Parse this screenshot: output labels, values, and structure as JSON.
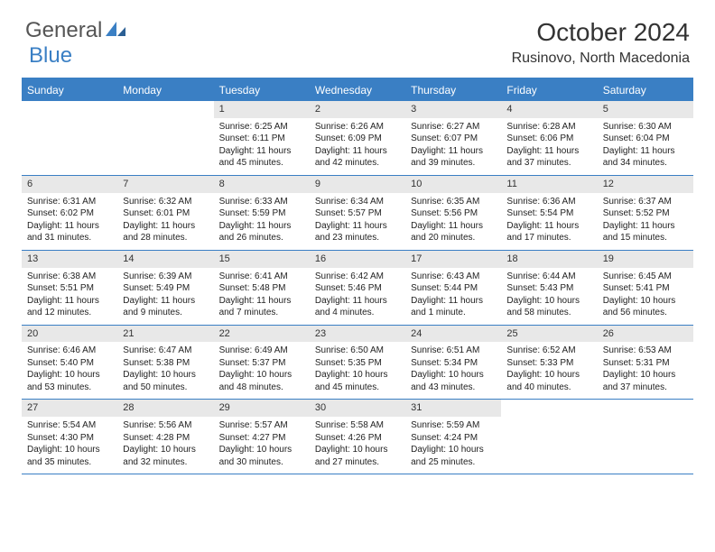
{
  "logo": {
    "g": "General",
    "b": "Blue"
  },
  "title": "October 2024",
  "location": "Rusinovo, North Macedonia",
  "colors": {
    "accent": "#3a7fc4",
    "row_border": "#3a7fc4",
    "num_bg": "#e8e8e8",
    "text": "#333333",
    "bg": "#ffffff"
  },
  "weekdays": [
    "Sunday",
    "Monday",
    "Tuesday",
    "Wednesday",
    "Thursday",
    "Friday",
    "Saturday"
  ],
  "weeks": [
    [
      {
        "n": "",
        "sr": "",
        "ss": "",
        "dl": ""
      },
      {
        "n": "",
        "sr": "",
        "ss": "",
        "dl": ""
      },
      {
        "n": "1",
        "sr": "Sunrise: 6:25 AM",
        "ss": "Sunset: 6:11 PM",
        "dl": "Daylight: 11 hours and 45 minutes."
      },
      {
        "n": "2",
        "sr": "Sunrise: 6:26 AM",
        "ss": "Sunset: 6:09 PM",
        "dl": "Daylight: 11 hours and 42 minutes."
      },
      {
        "n": "3",
        "sr": "Sunrise: 6:27 AM",
        "ss": "Sunset: 6:07 PM",
        "dl": "Daylight: 11 hours and 39 minutes."
      },
      {
        "n": "4",
        "sr": "Sunrise: 6:28 AM",
        "ss": "Sunset: 6:06 PM",
        "dl": "Daylight: 11 hours and 37 minutes."
      },
      {
        "n": "5",
        "sr": "Sunrise: 6:30 AM",
        "ss": "Sunset: 6:04 PM",
        "dl": "Daylight: 11 hours and 34 minutes."
      }
    ],
    [
      {
        "n": "6",
        "sr": "Sunrise: 6:31 AM",
        "ss": "Sunset: 6:02 PM",
        "dl": "Daylight: 11 hours and 31 minutes."
      },
      {
        "n": "7",
        "sr": "Sunrise: 6:32 AM",
        "ss": "Sunset: 6:01 PM",
        "dl": "Daylight: 11 hours and 28 minutes."
      },
      {
        "n": "8",
        "sr": "Sunrise: 6:33 AM",
        "ss": "Sunset: 5:59 PM",
        "dl": "Daylight: 11 hours and 26 minutes."
      },
      {
        "n": "9",
        "sr": "Sunrise: 6:34 AM",
        "ss": "Sunset: 5:57 PM",
        "dl": "Daylight: 11 hours and 23 minutes."
      },
      {
        "n": "10",
        "sr": "Sunrise: 6:35 AM",
        "ss": "Sunset: 5:56 PM",
        "dl": "Daylight: 11 hours and 20 minutes."
      },
      {
        "n": "11",
        "sr": "Sunrise: 6:36 AM",
        "ss": "Sunset: 5:54 PM",
        "dl": "Daylight: 11 hours and 17 minutes."
      },
      {
        "n": "12",
        "sr": "Sunrise: 6:37 AM",
        "ss": "Sunset: 5:52 PM",
        "dl": "Daylight: 11 hours and 15 minutes."
      }
    ],
    [
      {
        "n": "13",
        "sr": "Sunrise: 6:38 AM",
        "ss": "Sunset: 5:51 PM",
        "dl": "Daylight: 11 hours and 12 minutes."
      },
      {
        "n": "14",
        "sr": "Sunrise: 6:39 AM",
        "ss": "Sunset: 5:49 PM",
        "dl": "Daylight: 11 hours and 9 minutes."
      },
      {
        "n": "15",
        "sr": "Sunrise: 6:41 AM",
        "ss": "Sunset: 5:48 PM",
        "dl": "Daylight: 11 hours and 7 minutes."
      },
      {
        "n": "16",
        "sr": "Sunrise: 6:42 AM",
        "ss": "Sunset: 5:46 PM",
        "dl": "Daylight: 11 hours and 4 minutes."
      },
      {
        "n": "17",
        "sr": "Sunrise: 6:43 AM",
        "ss": "Sunset: 5:44 PM",
        "dl": "Daylight: 11 hours and 1 minute."
      },
      {
        "n": "18",
        "sr": "Sunrise: 6:44 AM",
        "ss": "Sunset: 5:43 PM",
        "dl": "Daylight: 10 hours and 58 minutes."
      },
      {
        "n": "19",
        "sr": "Sunrise: 6:45 AM",
        "ss": "Sunset: 5:41 PM",
        "dl": "Daylight: 10 hours and 56 minutes."
      }
    ],
    [
      {
        "n": "20",
        "sr": "Sunrise: 6:46 AM",
        "ss": "Sunset: 5:40 PM",
        "dl": "Daylight: 10 hours and 53 minutes."
      },
      {
        "n": "21",
        "sr": "Sunrise: 6:47 AM",
        "ss": "Sunset: 5:38 PM",
        "dl": "Daylight: 10 hours and 50 minutes."
      },
      {
        "n": "22",
        "sr": "Sunrise: 6:49 AM",
        "ss": "Sunset: 5:37 PM",
        "dl": "Daylight: 10 hours and 48 minutes."
      },
      {
        "n": "23",
        "sr": "Sunrise: 6:50 AM",
        "ss": "Sunset: 5:35 PM",
        "dl": "Daylight: 10 hours and 45 minutes."
      },
      {
        "n": "24",
        "sr": "Sunrise: 6:51 AM",
        "ss": "Sunset: 5:34 PM",
        "dl": "Daylight: 10 hours and 43 minutes."
      },
      {
        "n": "25",
        "sr": "Sunrise: 6:52 AM",
        "ss": "Sunset: 5:33 PM",
        "dl": "Daylight: 10 hours and 40 minutes."
      },
      {
        "n": "26",
        "sr": "Sunrise: 6:53 AM",
        "ss": "Sunset: 5:31 PM",
        "dl": "Daylight: 10 hours and 37 minutes."
      }
    ],
    [
      {
        "n": "27",
        "sr": "Sunrise: 5:54 AM",
        "ss": "Sunset: 4:30 PM",
        "dl": "Daylight: 10 hours and 35 minutes."
      },
      {
        "n": "28",
        "sr": "Sunrise: 5:56 AM",
        "ss": "Sunset: 4:28 PM",
        "dl": "Daylight: 10 hours and 32 minutes."
      },
      {
        "n": "29",
        "sr": "Sunrise: 5:57 AM",
        "ss": "Sunset: 4:27 PM",
        "dl": "Daylight: 10 hours and 30 minutes."
      },
      {
        "n": "30",
        "sr": "Sunrise: 5:58 AM",
        "ss": "Sunset: 4:26 PM",
        "dl": "Daylight: 10 hours and 27 minutes."
      },
      {
        "n": "31",
        "sr": "Sunrise: 5:59 AM",
        "ss": "Sunset: 4:24 PM",
        "dl": "Daylight: 10 hours and 25 minutes."
      },
      {
        "n": "",
        "sr": "",
        "ss": "",
        "dl": ""
      },
      {
        "n": "",
        "sr": "",
        "ss": "",
        "dl": ""
      }
    ]
  ]
}
